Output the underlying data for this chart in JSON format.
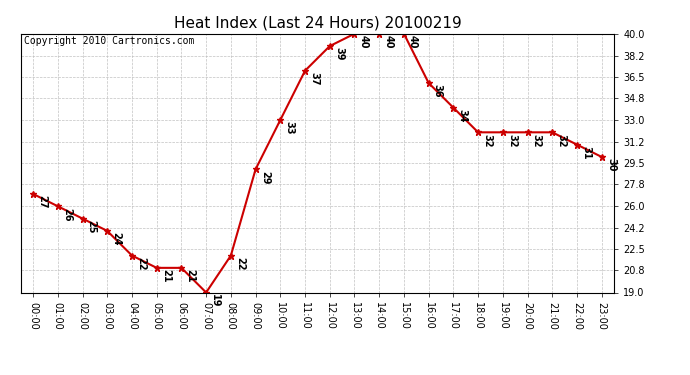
{
  "title": "Heat Index (Last 24 Hours) 20100219",
  "copyright_text": "Copyright 2010 Cartronics.com",
  "hours": [
    0,
    1,
    2,
    3,
    4,
    5,
    6,
    7,
    8,
    9,
    10,
    11,
    12,
    13,
    14,
    15,
    16,
    17,
    18,
    19,
    20,
    21,
    22,
    23
  ],
  "hour_labels": [
    "00:00",
    "01:00",
    "02:00",
    "03:00",
    "04:00",
    "05:00",
    "06:00",
    "07:00",
    "08:00",
    "09:00",
    "10:00",
    "11:00",
    "12:00",
    "13:00",
    "14:00",
    "15:00",
    "16:00",
    "17:00",
    "18:00",
    "19:00",
    "20:00",
    "21:00",
    "22:00",
    "23:00"
  ],
  "values": [
    27,
    26,
    25,
    24,
    22,
    21,
    21,
    19,
    22,
    29,
    33,
    37,
    39,
    40,
    40,
    40,
    36,
    34,
    32,
    32,
    32,
    32,
    31,
    30
  ],
  "ylim": [
    19.0,
    40.0
  ],
  "yticks": [
    19.0,
    20.8,
    22.5,
    24.2,
    26.0,
    27.8,
    29.5,
    31.2,
    33.0,
    34.8,
    36.5,
    38.2,
    40.0
  ],
  "line_color": "#cc0000",
  "marker_color": "#cc0000",
  "bg_color": "#ffffff",
  "grid_color": "#bbbbbb",
  "title_fontsize": 11,
  "copyright_fontsize": 7,
  "label_fontsize": 7,
  "annot_fontsize": 7
}
